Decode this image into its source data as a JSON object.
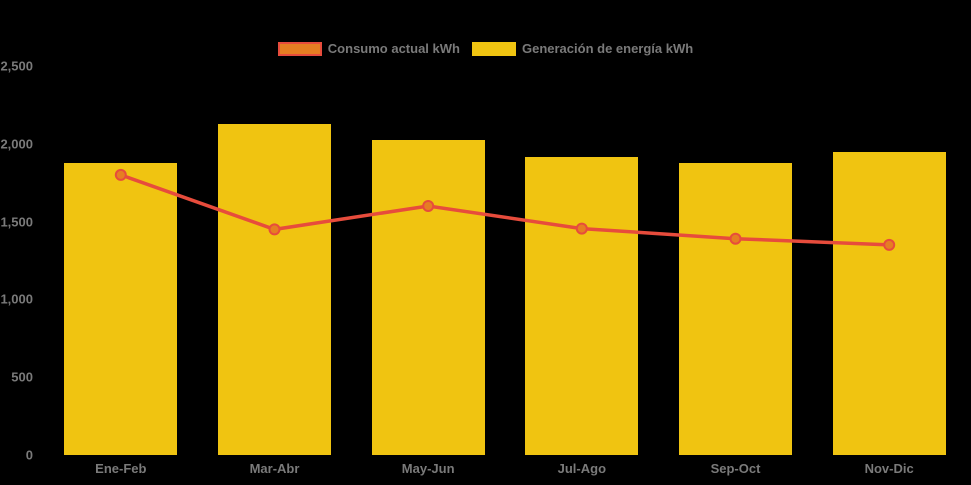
{
  "chart_data": {
    "type": "bar",
    "title": "",
    "categories": [
      "Ene-Feb",
      "Mar-Abr",
      "May-Jun",
      "Jul-Ago",
      "Sep-Oct",
      "Nov-Dic"
    ],
    "series": [
      {
        "name": "Generación de energía kWh",
        "type": "bar",
        "values": [
          1875,
          2130,
          2025,
          1915,
          1875,
          1945
        ],
        "color": "#F0C411"
      },
      {
        "name": "Consumo actual kWh",
        "type": "line",
        "values": [
          1800,
          1450,
          1600,
          1455,
          1390,
          1350
        ],
        "line_color": "#E74C3C",
        "marker_fill": "#E67E22",
        "marker_stroke": "#E74C3C"
      }
    ],
    "xlabel": "",
    "ylabel": "",
    "ylim": [
      0,
      2500
    ],
    "ytick_labels": [
      "0",
      "500",
      "1,000",
      "1,500",
      "2,000",
      "2,500"
    ],
    "grid": false,
    "legend_position": "top-center",
    "background_color": "#000000",
    "tick_label_color": "#7A7A7A"
  },
  "legend": {
    "items": [
      {
        "label": "Consumo actual kWh",
        "swatch_fill": "#E67E22",
        "swatch_border": "#E74C3C"
      },
      {
        "label": "Generación de energía kWh",
        "swatch_fill": "#F0C411",
        "swatch_border": "#F0C411"
      }
    ]
  }
}
